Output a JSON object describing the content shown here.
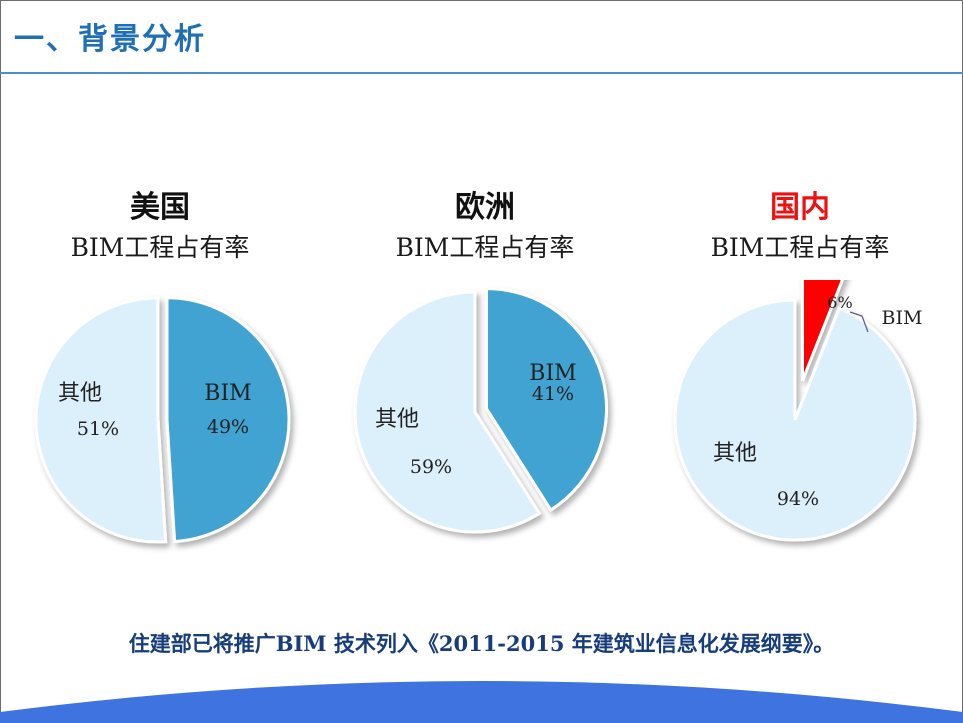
{
  "slide": {
    "title": "一、背景分析",
    "footer_note": "住建部已将推广BIM 技术列入《2011-2015 年建筑业信息化发展纲要》。"
  },
  "colors": {
    "bim_slice": "#3fa3d1",
    "other_slice": "#dcf0fb",
    "highlight_slice": "#ff0000",
    "title_blue": "#1f6fb4",
    "footer_blue": "#163c7a"
  },
  "chart_data": [
    {
      "type": "pie",
      "title": "美国",
      "subtitle": "BIM工程占有率",
      "slices": [
        {
          "label": "BIM",
          "value": 49,
          "value_label": "49%"
        },
        {
          "label": "其他",
          "value": 51,
          "value_label": "51%"
        }
      ]
    },
    {
      "type": "pie",
      "title": "欧洲",
      "subtitle": "BIM工程占有率",
      "slices": [
        {
          "label": "BIM",
          "value": 41,
          "value_label": "41%"
        },
        {
          "label": "其他",
          "value": 59,
          "value_label": "59%"
        }
      ]
    },
    {
      "type": "pie",
      "title": "国内",
      "subtitle": "BIM工程占有率",
      "slices": [
        {
          "label": "BIM",
          "value": 6,
          "value_label": "6%"
        },
        {
          "label": "其他",
          "value": 94,
          "value_label": "94%"
        }
      ]
    }
  ]
}
